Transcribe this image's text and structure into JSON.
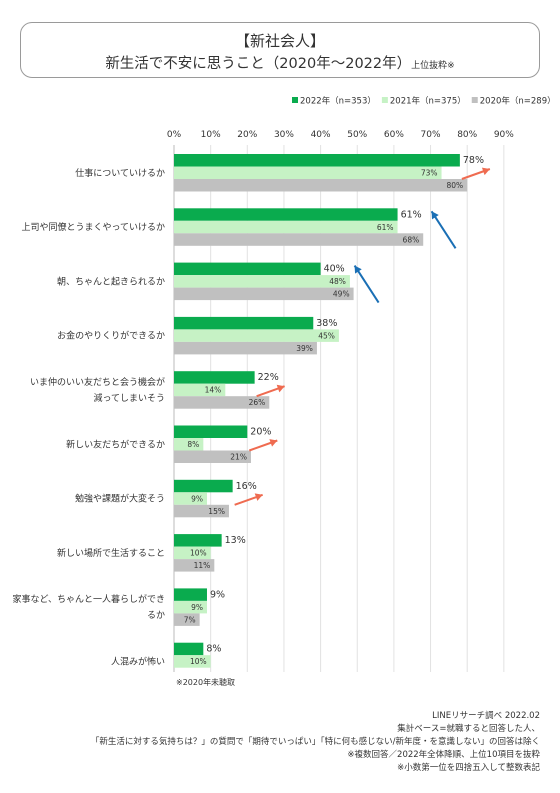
{
  "title": {
    "line1": "【新社会人】",
    "line2_main": "新生活で不安に思うこと（2020年～2022年）",
    "line2_sub": "上位抜粋※"
  },
  "chart_data": {
    "type": "bar",
    "orientation": "horizontal",
    "xlim": [
      0,
      90
    ],
    "ticks": [
      "0%",
      "10%",
      "20%",
      "30%",
      "40%",
      "50%",
      "60%",
      "70%",
      "80%",
      "90%"
    ],
    "grid": true,
    "legend_position": "top-right",
    "categories": [
      [
        "仕事についていけるか"
      ],
      [
        "上司や同僚とうまくやっていけるか"
      ],
      [
        "朝、ちゃんと起きられるか"
      ],
      [
        "お金のやりくりができるか"
      ],
      [
        "いま仲のいい友だちと会う機会が",
        "減ってしまいそう"
      ],
      [
        "新しい友だちができるか"
      ],
      [
        "勉強や課題が大変そう"
      ],
      [
        "新しい場所で生活すること"
      ],
      [
        "家事など、ちゃんと一人暮らしができ",
        "るか"
      ],
      [
        "人混みが怖い"
      ]
    ],
    "series": [
      {
        "name": "2022年（n=353）",
        "color": "#0aab4e",
        "values": [
          78,
          61,
          40,
          38,
          22,
          20,
          16,
          13,
          9,
          8
        ],
        "labels": [
          "78%",
          "61%",
          "40%",
          "38%",
          "22%",
          "20%",
          "16%",
          "13%",
          "9%",
          "8%"
        ]
      },
      {
        "name": "2021年（n=375）",
        "color": "#c6f2c5",
        "values": [
          73,
          61,
          48,
          45,
          14,
          8,
          9,
          10,
          9,
          10
        ],
        "labels": [
          "73%",
          "61%",
          "48%",
          "45%",
          "14%",
          "8%",
          "9%",
          "10%",
          "9%",
          "10%"
        ]
      },
      {
        "name": "2020年（n=289）",
        "color": "#c0c0c0",
        "values": [
          80,
          68,
          49,
          39,
          26,
          21,
          15,
          11,
          7,
          null
        ],
        "labels": [
          "80%",
          "68%",
          "49%",
          "39%",
          "26%",
          "21%",
          "15%",
          "11%",
          "7%",
          ""
        ]
      }
    ],
    "trend_arrows": [
      {
        "category": 0,
        "direction": "up",
        "color": "#ef6b50"
      },
      {
        "category": 1,
        "direction": "down",
        "color": "#1a6fb5"
      },
      {
        "category": 2,
        "direction": "down",
        "color": "#1a6fb5"
      },
      {
        "category": 4,
        "direction": "up",
        "color": "#ef6b50"
      },
      {
        "category": 5,
        "direction": "up",
        "color": "#ef6b50"
      },
      {
        "category": 6,
        "direction": "up",
        "color": "#ef6b50"
      }
    ]
  },
  "note_2020": "※2020年未聴取",
  "notes": [
    "LINEリサーチ調べ 2022.02",
    "集計ベース=就職すると回答した人、",
    "「新生活に対する気持ちは？」の質問で「期待でいっぱい」「特に何も感じない/新年度・を意識しない」の回答は除く",
    "※複数回答／2022年全体降順、上位10項目を抜粋",
    "※小数第一位を四捨五入して整数表記"
  ]
}
